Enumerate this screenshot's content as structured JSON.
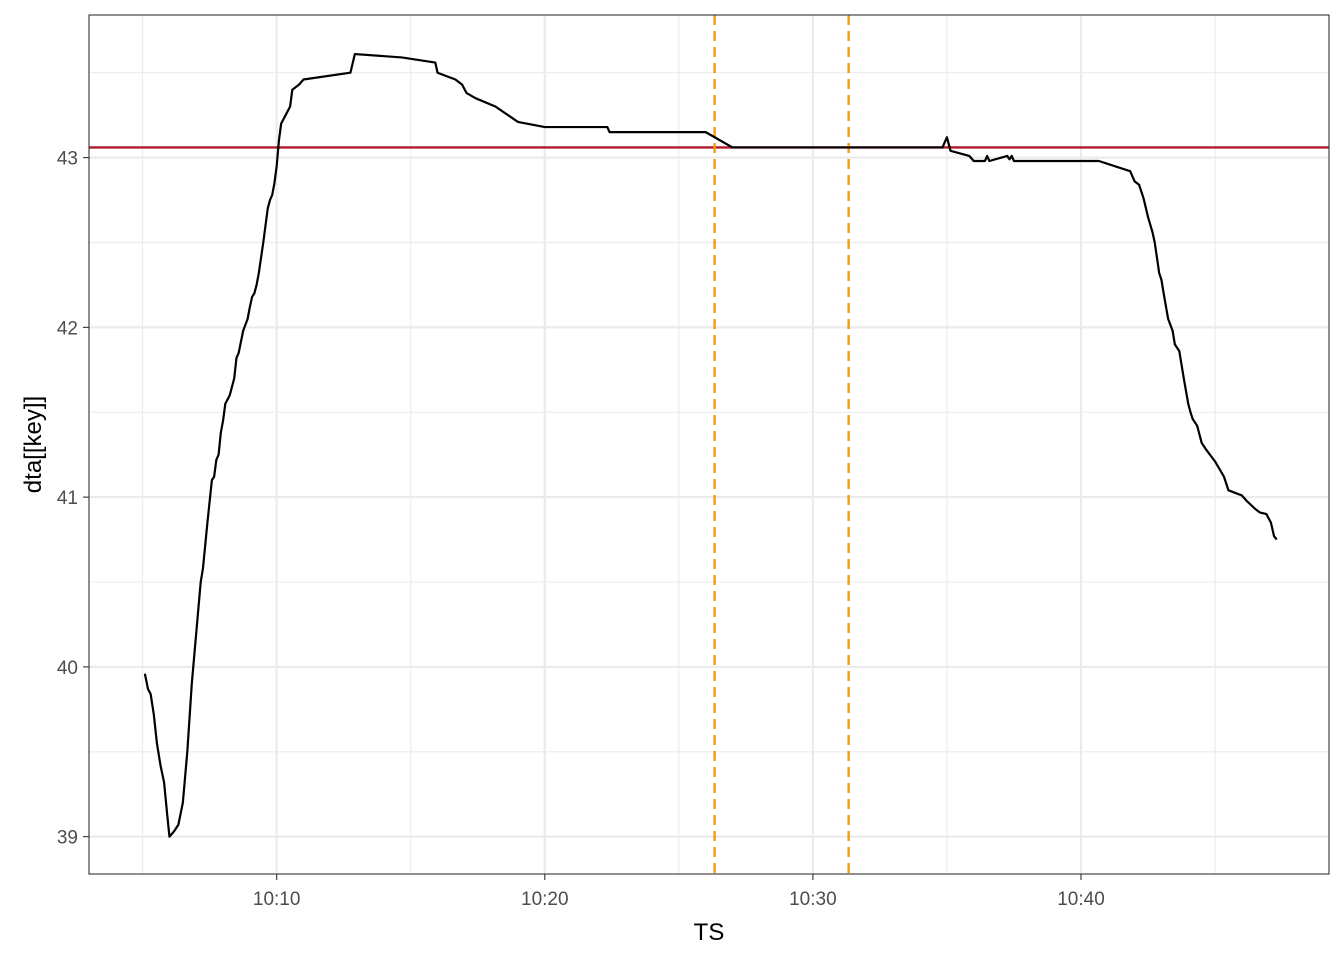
{
  "chart_data": {
    "type": "line",
    "title": "",
    "xlabel": "TS",
    "ylabel": "dta[[key]]",
    "x_axis": {
      "type": "time",
      "ticks": [
        "10:10",
        "10:20",
        "10:30",
        "10:40"
      ],
      "range": [
        "10:03:00",
        "10:49:15"
      ]
    },
    "y_axis": {
      "ticks": [
        39,
        40,
        41,
        42,
        43
      ],
      "range": [
        38.78,
        43.84
      ]
    },
    "grid": true,
    "legend": "none",
    "series": [
      {
        "color": "#000000",
        "points": [
          [
            "10:05:05",
            39.96
          ],
          [
            "10:05:12",
            39.87
          ],
          [
            "10:05:18",
            39.84
          ],
          [
            "10:05:25",
            39.72
          ],
          [
            "10:05:32",
            39.55
          ],
          [
            "10:05:40",
            39.42
          ],
          [
            "10:05:48",
            39.32
          ],
          [
            "10:05:55",
            39.13
          ],
          [
            "10:06:00",
            39.0
          ],
          [
            "10:06:10",
            39.03
          ],
          [
            "10:06:20",
            39.07
          ],
          [
            "10:06:30",
            39.2
          ],
          [
            "10:06:40",
            39.5
          ],
          [
            "10:06:50",
            39.9
          ],
          [
            "10:07:00",
            40.2
          ],
          [
            "10:07:10",
            40.5
          ],
          [
            "10:07:15",
            40.58
          ],
          [
            "10:07:25",
            40.85
          ],
          [
            "10:07:35",
            41.1
          ],
          [
            "10:07:40",
            41.12
          ],
          [
            "10:07:45",
            41.22
          ],
          [
            "10:07:50",
            41.25
          ],
          [
            "10:07:55",
            41.38
          ],
          [
            "10:08:00",
            41.45
          ],
          [
            "10:08:05",
            41.55
          ],
          [
            "10:08:15",
            41.6
          ],
          [
            "10:08:25",
            41.7
          ],
          [
            "10:08:30",
            41.82
          ],
          [
            "10:08:35",
            41.85
          ],
          [
            "10:08:45",
            41.98
          ],
          [
            "10:08:55",
            42.05
          ],
          [
            "10:09:00",
            42.12
          ],
          [
            "10:09:05",
            42.18
          ],
          [
            "10:09:10",
            42.2
          ],
          [
            "10:09:15",
            42.25
          ],
          [
            "10:09:20",
            42.32
          ],
          [
            "10:09:30",
            42.5
          ],
          [
            "10:09:40",
            42.7
          ],
          [
            "10:09:45",
            42.75
          ],
          [
            "10:09:50",
            42.78
          ],
          [
            "10:09:55",
            42.85
          ],
          [
            "10:10:00",
            42.95
          ],
          [
            "10:10:05",
            43.1
          ],
          [
            "10:10:10",
            43.2
          ],
          [
            "10:10:20",
            43.25
          ],
          [
            "10:10:30",
            43.3
          ],
          [
            "10:10:35",
            43.4
          ],
          [
            "10:10:50",
            43.43
          ],
          [
            "10:11:00",
            43.46
          ],
          [
            "10:12:45",
            43.5
          ],
          [
            "10:12:55",
            43.61
          ],
          [
            "10:14:40",
            43.59
          ],
          [
            "10:15:55",
            43.56
          ],
          [
            "10:16:00",
            43.5
          ],
          [
            "10:16:40",
            43.46
          ],
          [
            "10:16:55",
            43.43
          ],
          [
            "10:17:05",
            43.38
          ],
          [
            "10:17:25",
            43.35
          ],
          [
            "10:18:10",
            43.3
          ],
          [
            "10:19:00",
            43.21
          ],
          [
            "10:20:00",
            43.18
          ],
          [
            "10:22:20",
            43.18
          ],
          [
            "10:22:25",
            43.15
          ],
          [
            "10:26:00",
            43.15
          ],
          [
            "10:27:00",
            43.06
          ],
          [
            "10:34:50",
            43.06
          ],
          [
            "10:35:00",
            43.12
          ],
          [
            "10:35:08",
            43.04
          ],
          [
            "10:35:50",
            43.01
          ],
          [
            "10:36:00",
            42.98
          ],
          [
            "10:36:25",
            42.98
          ],
          [
            "10:36:30",
            43.01
          ],
          [
            "10:36:35",
            42.98
          ],
          [
            "10:37:15",
            43.01
          ],
          [
            "10:37:20",
            42.99
          ],
          [
            "10:37:25",
            43.01
          ],
          [
            "10:37:30",
            42.98
          ],
          [
            "10:40:40",
            42.98
          ],
          [
            "10:41:50",
            42.92
          ],
          [
            "10:42:00",
            42.86
          ],
          [
            "10:42:10",
            42.84
          ],
          [
            "10:42:20",
            42.76
          ],
          [
            "10:42:30",
            42.65
          ],
          [
            "10:42:40",
            42.56
          ],
          [
            "10:42:45",
            42.5
          ],
          [
            "10:42:55",
            42.32
          ],
          [
            "10:43:00",
            42.28
          ],
          [
            "10:43:05",
            42.2
          ],
          [
            "10:43:15",
            42.05
          ],
          [
            "10:43:25",
            41.98
          ],
          [
            "10:43:30",
            41.9
          ],
          [
            "10:43:40",
            41.86
          ],
          [
            "10:43:50",
            41.7
          ],
          [
            "10:44:00",
            41.55
          ],
          [
            "10:44:05",
            41.5
          ],
          [
            "10:44:10",
            41.46
          ],
          [
            "10:44:20",
            41.42
          ],
          [
            "10:44:30",
            41.32
          ],
          [
            "10:44:40",
            41.28
          ],
          [
            "10:45:00",
            41.21
          ],
          [
            "10:45:20",
            41.12
          ],
          [
            "10:45:30",
            41.04
          ],
          [
            "10:46:00",
            41.01
          ],
          [
            "10:46:10",
            40.98
          ],
          [
            "10:46:30",
            40.93
          ],
          [
            "10:46:40",
            40.91
          ],
          [
            "10:46:55",
            40.9
          ],
          [
            "10:47:05",
            40.85
          ],
          [
            "10:47:12",
            40.77
          ],
          [
            "10:47:18",
            40.75
          ]
        ]
      }
    ],
    "reference_lines": [
      {
        "orientation": "horizontal",
        "y": 43.06,
        "color": "#b2182b",
        "style": "solid"
      },
      {
        "orientation": "vertical",
        "x": "10:26:20",
        "color": "#f39c12",
        "style": "dashed"
      },
      {
        "orientation": "vertical",
        "x": "10:31:20",
        "color": "#f39c12",
        "style": "dashed"
      }
    ]
  }
}
